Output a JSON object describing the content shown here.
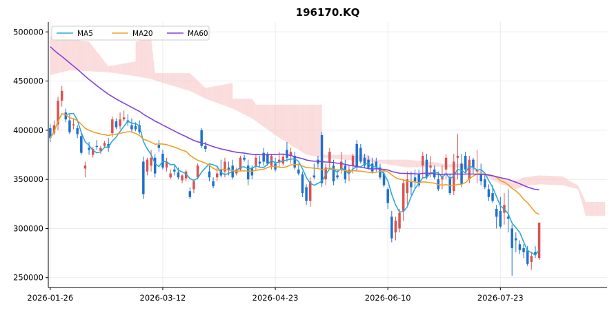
{
  "chart_data": {
    "type": "candlestick",
    "title": "196170.KQ",
    "xlabel": "",
    "ylabel": "",
    "x_ticks": [
      {
        "label": "2026-01-26",
        "index": 0
      },
      {
        "label": "2026-03-12",
        "index": 29
      },
      {
        "label": "2026-04-23",
        "index": 58
      },
      {
        "label": "2026-06-10",
        "index": 87
      },
      {
        "label": "2026-07-23",
        "index": 116
      }
    ],
    "x_range": [
      -0.5,
      143.5
    ],
    "ylim": [
      240000,
      510000
    ],
    "y_ticks": [
      250000,
      300000,
      350000,
      400000,
      450000,
      500000
    ],
    "grid": true,
    "legend_position": "top-left",
    "up_color": "#d9534f",
    "down_color": "#1f6fcf",
    "series": [
      {
        "name": "MA5",
        "color": "#2aa8d8"
      },
      {
        "name": "MA20",
        "color": "#f0a020"
      },
      {
        "name": "MA60",
        "color": "#8040e0"
      }
    ],
    "cloud_colors": {
      "bearish": "#f9c4c4",
      "bullish": "#c8e9cc"
    },
    "cloud_span_a": [
      [
        0,
        495000
      ],
      [
        10,
        490000
      ],
      [
        15,
        465000
      ],
      [
        22,
        470000
      ],
      [
        22,
        490000
      ],
      [
        26,
        494000
      ],
      [
        27,
        458000
      ],
      [
        36,
        458000
      ],
      [
        40,
        443000
      ],
      [
        47,
        448000
      ],
      [
        47,
        432000
      ],
      [
        52,
        432000
      ],
      [
        53,
        426000
      ],
      [
        70,
        426000
      ],
      [
        70,
        375000
      ],
      [
        82,
        375000
      ],
      [
        83,
        370000
      ],
      [
        92,
        370000
      ],
      [
        100,
        367000
      ],
      [
        102,
        365000
      ],
      [
        106,
        366000
      ],
      [
        108,
        364000
      ],
      [
        112,
        356000
      ],
      [
        118,
        350000
      ],
      [
        120,
        348000
      ],
      [
        122,
        352000
      ],
      [
        126,
        354000
      ],
      [
        132,
        353000
      ],
      [
        134,
        348000
      ],
      [
        136,
        344000
      ],
      [
        138,
        327000
      ],
      [
        143,
        327000
      ]
    ],
    "cloud_span_b": [
      [
        0,
        456000
      ],
      [
        5,
        461000
      ],
      [
        10,
        460000
      ],
      [
        15,
        459000
      ],
      [
        22,
        455000
      ],
      [
        26,
        452000
      ],
      [
        30,
        447000
      ],
      [
        36,
        440000
      ],
      [
        40,
        432000
      ],
      [
        47,
        422000
      ],
      [
        52,
        412000
      ],
      [
        58,
        395000
      ],
      [
        62,
        385000
      ],
      [
        66,
        375000
      ],
      [
        70,
        372000
      ],
      [
        76,
        370000
      ],
      [
        82,
        368000
      ],
      [
        86,
        366000
      ],
      [
        92,
        362000
      ],
      [
        100,
        363000
      ],
      [
        104,
        362000
      ],
      [
        108,
        361000
      ],
      [
        112,
        354000
      ],
      [
        116,
        345000
      ],
      [
        118,
        343000
      ],
      [
        120,
        340000
      ],
      [
        122,
        343000
      ],
      [
        126,
        345000
      ],
      [
        132,
        344000
      ],
      [
        134,
        342000
      ],
      [
        136,
        340000
      ],
      [
        138,
        313000
      ],
      [
        143,
        313000
      ]
    ],
    "ohlc": [
      [
        402000,
        406000,
        388000,
        392000
      ],
      [
        397000,
        410000,
        395000,
        405000
      ],
      [
        406000,
        434000,
        400000,
        430000
      ],
      [
        430000,
        445000,
        424000,
        440000
      ],
      [
        418000,
        422000,
        408000,
        411000
      ],
      [
        410000,
        416000,
        396000,
        398000
      ],
      [
        405000,
        412000,
        401000,
        406000
      ],
      [
        402000,
        405000,
        392000,
        396000
      ],
      [
        394000,
        398000,
        375000,
        377000
      ],
      [
        361000,
        368000,
        352000,
        364000
      ],
      [
        382000,
        388000,
        375000,
        380000
      ],
      [
        375000,
        383000,
        372000,
        381000
      ],
      [
        384000,
        390000,
        380000,
        383000
      ],
      [
        379000,
        384000,
        376000,
        382000
      ],
      [
        384000,
        389000,
        382000,
        387000
      ],
      [
        386000,
        392000,
        378000,
        382000
      ],
      [
        397000,
        414000,
        393000,
        411000
      ],
      [
        409000,
        412000,
        401000,
        403000
      ],
      [
        404000,
        418000,
        401000,
        411000
      ],
      [
        411000,
        420000,
        409000,
        413000
      ],
      [
        410000,
        416000,
        404000,
        408000
      ],
      [
        405000,
        412000,
        398000,
        401000
      ],
      [
        404000,
        408000,
        399000,
        401000
      ],
      [
        405000,
        410000,
        396000,
        398000
      ],
      [
        368000,
        373000,
        330000,
        335000
      ],
      [
        358000,
        372000,
        354000,
        370000
      ],
      [
        364000,
        380000,
        358000,
        372000
      ],
      [
        372000,
        376000,
        352000,
        356000
      ],
      [
        385000,
        390000,
        378000,
        382000
      ],
      [
        376000,
        380000,
        360000,
        362000
      ],
      [
        362000,
        372000,
        358000,
        368000
      ],
      [
        352000,
        360000,
        350000,
        356000
      ],
      [
        360000,
        364000,
        354000,
        358000
      ],
      [
        357000,
        362000,
        350000,
        352000
      ],
      [
        349000,
        355000,
        346000,
        354000
      ],
      [
        351000,
        360000,
        348000,
        358000
      ],
      [
        338000,
        342000,
        330000,
        332000
      ],
      [
        340000,
        350000,
        336000,
        348000
      ],
      [
        352000,
        366000,
        350000,
        364000
      ],
      [
        400000,
        402000,
        382000,
        384000
      ],
      [
        384000,
        388000,
        378000,
        381000
      ],
      [
        358000,
        364000,
        348000,
        352000
      ],
      [
        348000,
        352000,
        341000,
        343000
      ],
      [
        352000,
        362000,
        348000,
        356000
      ],
      [
        360000,
        370000,
        352000,
        354000
      ],
      [
        358000,
        372000,
        352000,
        368000
      ],
      [
        362000,
        368000,
        354000,
        360000
      ],
      [
        364000,
        370000,
        350000,
        352000
      ],
      [
        356000,
        362000,
        354000,
        360000
      ],
      [
        360000,
        374000,
        358000,
        372000
      ],
      [
        372000,
        375000,
        368000,
        370000
      ],
      [
        364000,
        370000,
        344000,
        350000
      ],
      [
        362000,
        364000,
        350000,
        354000
      ],
      [
        364000,
        376000,
        360000,
        372000
      ],
      [
        368000,
        374000,
        362000,
        366000
      ],
      [
        377000,
        382000,
        364000,
        368000
      ],
      [
        376000,
        378000,
        364000,
        366000
      ],
      [
        364000,
        376000,
        360000,
        374000
      ],
      [
        366000,
        372000,
        358000,
        360000
      ],
      [
        368000,
        378000,
        362000,
        370000
      ],
      [
        366000,
        376000,
        364000,
        373000
      ],
      [
        380000,
        388000,
        368000,
        372000
      ],
      [
        374000,
        382000,
        366000,
        378000
      ],
      [
        374000,
        378000,
        360000,
        362000
      ],
      [
        360000,
        366000,
        354000,
        356000
      ],
      [
        355000,
        358000,
        332000,
        336000
      ],
      [
        342000,
        345000,
        324000,
        328000
      ],
      [
        328000,
        352000,
        322000,
        348000
      ],
      [
        354000,
        366000,
        350000,
        352000
      ],
      [
        370000,
        374000,
        362000,
        366000
      ],
      [
        395000,
        398000,
        342000,
        346000
      ],
      [
        350000,
        366000,
        344000,
        362000
      ],
      [
        367000,
        382000,
        362000,
        378000
      ],
      [
        364000,
        370000,
        344000,
        348000
      ],
      [
        354000,
        360000,
        350000,
        352000
      ],
      [
        360000,
        378000,
        356000,
        368000
      ],
      [
        364000,
        370000,
        346000,
        350000
      ],
      [
        357000,
        364000,
        348000,
        360000
      ],
      [
        364000,
        376000,
        356000,
        374000
      ],
      [
        386000,
        390000,
        358000,
        362000
      ],
      [
        382000,
        386000,
        366000,
        368000
      ],
      [
        372000,
        376000,
        362000,
        364000
      ],
      [
        370000,
        374000,
        360000,
        362000
      ],
      [
        366000,
        372000,
        356000,
        358000
      ],
      [
        368000,
        372000,
        358000,
        362000
      ],
      [
        362000,
        366000,
        350000,
        352000
      ],
      [
        356000,
        360000,
        342000,
        344000
      ],
      [
        340000,
        342000,
        320000,
        326000
      ],
      [
        312000,
        318000,
        286000,
        290000
      ],
      [
        296000,
        312000,
        288000,
        308000
      ],
      [
        300000,
        320000,
        296000,
        316000
      ],
      [
        318000,
        350000,
        308000,
        346000
      ],
      [
        336000,
        358000,
        324000,
        350000
      ],
      [
        348000,
        358000,
        334000,
        342000
      ],
      [
        352000,
        360000,
        340000,
        348000
      ],
      [
        355000,
        360000,
        342000,
        344000
      ],
      [
        364000,
        378000,
        352000,
        374000
      ],
      [
        370000,
        376000,
        350000,
        352000
      ],
      [
        362000,
        374000,
        352000,
        364000
      ],
      [
        360000,
        364000,
        350000,
        352000
      ],
      [
        350000,
        358000,
        338000,
        340000
      ],
      [
        350000,
        364000,
        340000,
        352000
      ],
      [
        360000,
        376000,
        350000,
        372000
      ],
      [
        352000,
        356000,
        334000,
        336000
      ],
      [
        338000,
        376000,
        334000,
        368000
      ],
      [
        372000,
        396000,
        350000,
        374000
      ],
      [
        366000,
        376000,
        342000,
        345000
      ],
      [
        374000,
        378000,
        356000,
        360000
      ],
      [
        350000,
        374000,
        346000,
        370000
      ],
      [
        370000,
        372000,
        356000,
        362000
      ],
      [
        358000,
        380000,
        346000,
        360000
      ],
      [
        355000,
        366000,
        344000,
        348000
      ],
      [
        350000,
        355000,
        340000,
        342000
      ],
      [
        340000,
        345000,
        328000,
        332000
      ],
      [
        336000,
        344000,
        326000,
        328000
      ],
      [
        320000,
        324000,
        300000,
        312000
      ],
      [
        318000,
        332000,
        300000,
        302000
      ],
      [
        316000,
        336000,
        304000,
        324000
      ],
      [
        312000,
        340000,
        296000,
        310000
      ],
      [
        300000,
        304000,
        252000,
        280000
      ],
      [
        290000,
        296000,
        276000,
        288000
      ],
      [
        284000,
        288000,
        274000,
        278000
      ],
      [
        280000,
        284000,
        270000,
        276000
      ],
      [
        278000,
        282000,
        262000,
        264000
      ],
      [
        266000,
        276000,
        258000,
        272000
      ],
      [
        276000,
        282000,
        270000,
        274000
      ],
      [
        270000,
        306000,
        268000,
        306000
      ]
    ]
  }
}
